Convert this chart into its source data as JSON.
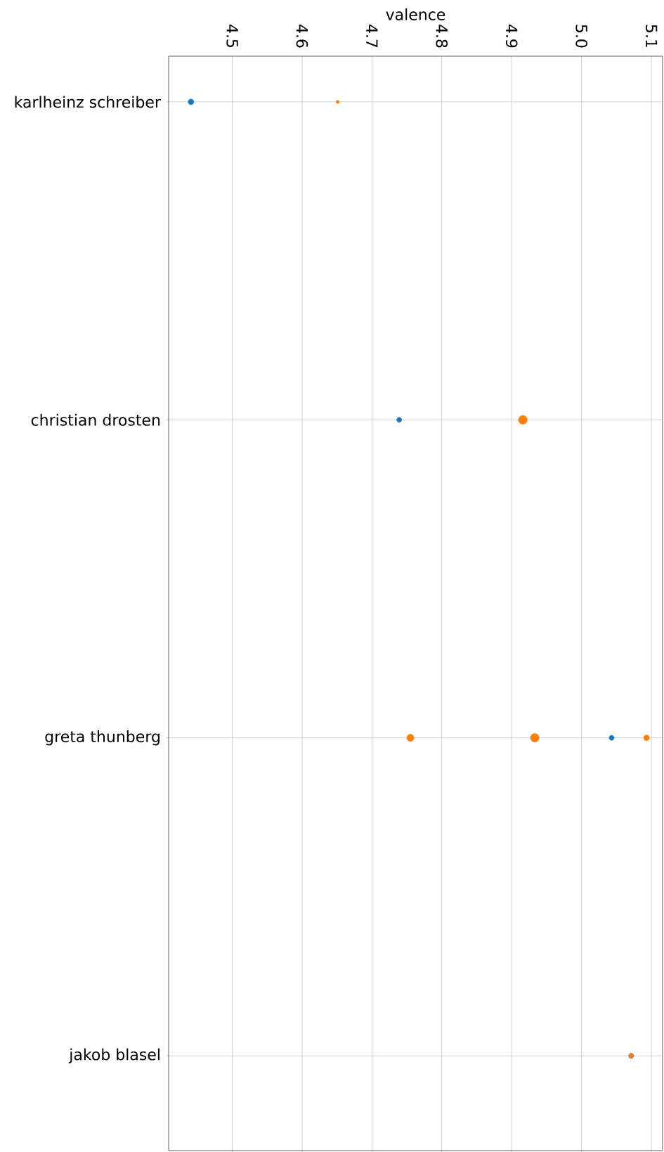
{
  "chart_data": {
    "type": "bubble",
    "orientation": "horizontal",
    "xlabel": "valence",
    "categories": [
      "karlheinz schreiber",
      "christian drosten",
      "greta thunberg",
      "jakob blasel"
    ],
    "series": [
      {
        "color": "#1f77b4",
        "values": [
          4.441,
          4.739,
          5.043,
          5.071
        ],
        "sizes": [
          0.42,
          0.32,
          0.32,
          0.32
        ]
      },
      {
        "color": "#ff7f0e",
        "values": [
          4.651,
          4.916,
          4.755,
          5.071
        ],
        "sizes": [
          0.13,
          1,
          0.66,
          0.25
        ]
      },
      {
        "color": "#ff7f0e",
        "values": [
          null,
          null,
          4.933,
          null
        ],
        "sizes": [
          null,
          null,
          0.95,
          null
        ]
      },
      {
        "color": "#ff7f0e",
        "values": [
          null,
          null,
          5.093,
          null
        ],
        "sizes": [
          null,
          null,
          0.42,
          null
        ]
      }
    ],
    "xlim": [
      4.409,
      5.116
    ],
    "xticks": [
      4.5,
      4.6,
      4.7,
      4.8,
      4.9,
      {
        "value": 5,
        "label": "5.0"
      },
      5.1
    ],
    "grid": true,
    "marker": "circle"
  }
}
